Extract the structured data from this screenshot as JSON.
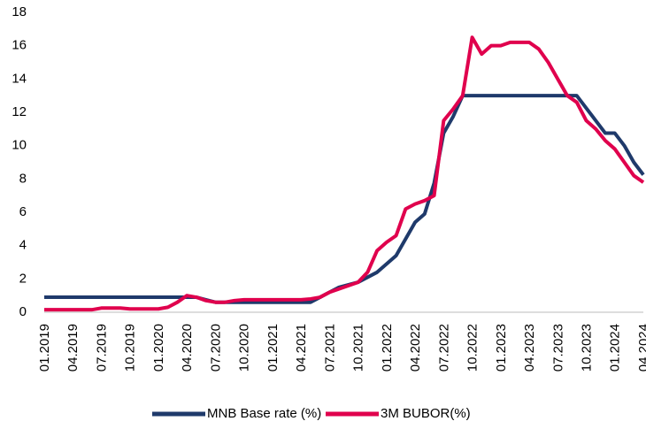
{
  "chart_data": {
    "type": "line",
    "categories": [
      "01.2019",
      null,
      null,
      "04.2019",
      null,
      null,
      "07.2019",
      null,
      null,
      "10.2019",
      null,
      null,
      "01.2020",
      null,
      null,
      "04.2020",
      null,
      null,
      "07.2020",
      null,
      null,
      "10.2020",
      null,
      null,
      "01.2021",
      null,
      null,
      "04.2021",
      null,
      null,
      "07.2021",
      null,
      null,
      "10.2021",
      null,
      null,
      "01.2022",
      null,
      null,
      "04.2022",
      null,
      null,
      "07.2022",
      null,
      null,
      "10.2022",
      null,
      null,
      "01.2023",
      null,
      null,
      "04.2023",
      null,
      null,
      "07.2023",
      null,
      null,
      "10.2023",
      null,
      null,
      "01.2024",
      null,
      null,
      "04.2024"
    ],
    "series": [
      {
        "name": "MNB Base rate (%)",
        "color": "#1f3a6b",
        "values": [
          0.9,
          0.9,
          0.9,
          0.9,
          0.9,
          0.9,
          0.9,
          0.9,
          0.9,
          0.9,
          0.9,
          0.9,
          0.9,
          0.9,
          0.9,
          0.9,
          0.9,
          0.75,
          0.6,
          0.6,
          0.6,
          0.6,
          0.6,
          0.6,
          0.6,
          0.6,
          0.6,
          0.6,
          0.6,
          0.9,
          1.2,
          1.5,
          1.65,
          1.8,
          2.1,
          2.4,
          2.9,
          3.4,
          4.4,
          5.4,
          5.9,
          7.75,
          10.75,
          11.75,
          13,
          13,
          13,
          13,
          13,
          13,
          13,
          13,
          13,
          13,
          13,
          13,
          13,
          12.25,
          11.5,
          10.75,
          10.75,
          10,
          9,
          8.25
        ]
      },
      {
        "name": "3M BUBOR(%)",
        "color": "#e0004d",
        "values": [
          0.15,
          0.15,
          0.15,
          0.15,
          0.15,
          0.15,
          0.25,
          0.25,
          0.25,
          0.2,
          0.2,
          0.2,
          0.2,
          0.3,
          0.6,
          1.0,
          0.9,
          0.7,
          0.6,
          0.6,
          0.7,
          0.75,
          0.75,
          0.75,
          0.75,
          0.75,
          0.75,
          0.75,
          0.8,
          0.9,
          1.2,
          1.4,
          1.6,
          1.8,
          2.4,
          3.7,
          4.2,
          4.6,
          6.2,
          6.5,
          6.7,
          7.0,
          11.5,
          12.2,
          13,
          16.5,
          15.5,
          16.0,
          16.0,
          16.2,
          16.2,
          16.2,
          15.8,
          15.0,
          14.0,
          13.0,
          12.6,
          11.5,
          11.0,
          10.3,
          9.8,
          9.0,
          8.2,
          7.8
        ]
      }
    ],
    "ylim": [
      0,
      18
    ],
    "yticks": [
      0,
      2,
      4,
      6,
      8,
      10,
      12,
      14,
      16,
      18
    ],
    "grid": false
  }
}
